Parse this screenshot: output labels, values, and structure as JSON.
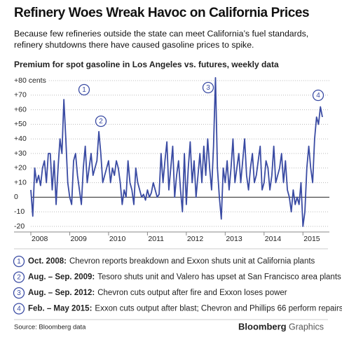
{
  "header": {
    "title": "Refinery Woes Wreak Havoc on California Prices",
    "subtitle": "Because few refineries outside the state can meet California’s fuel standards, refinery shutdowns there have caused gasoline prices to spike."
  },
  "chart_data": {
    "type": "line",
    "title": "Premium for spot gasoline in Los Angeles vs. futures, weekly data",
    "color": "#3a4ba3",
    "x": [
      2008,
      2008.05,
      2008.1,
      2008.15,
      2008.2,
      2008.25,
      2008.3,
      2008.35,
      2008.4,
      2008.45,
      2008.5,
      2008.55,
      2008.6,
      2008.65,
      2008.7,
      2008.75,
      2008.8,
      2008.85,
      2008.9,
      2008.95,
      2009,
      2009.05,
      2009.1,
      2009.15,
      2009.2,
      2009.25,
      2009.3,
      2009.35,
      2009.4,
      2009.45,
      2009.5,
      2009.55,
      2009.6,
      2009.65,
      2009.7,
      2009.75,
      2009.8,
      2009.85,
      2009.9,
      2009.95,
      2010,
      2010.05,
      2010.1,
      2010.15,
      2010.2,
      2010.25,
      2010.3,
      2010.35,
      2010.4,
      2010.45,
      2010.5,
      2010.55,
      2010.6,
      2010.65,
      2010.7,
      2010.75,
      2010.8,
      2010.85,
      2010.9,
      2010.95,
      2011,
      2011.05,
      2011.1,
      2011.15,
      2011.2,
      2011.25,
      2011.3,
      2011.35,
      2011.4,
      2011.45,
      2011.5,
      2011.55,
      2011.6,
      2011.65,
      2011.7,
      2011.75,
      2011.8,
      2011.85,
      2011.9,
      2011.95,
      2012,
      2012.05,
      2012.1,
      2012.15,
      2012.2,
      2012.25,
      2012.3,
      2012.35,
      2012.4,
      2012.45,
      2012.5,
      2012.55,
      2012.6,
      2012.65,
      2012.7,
      2012.75,
      2012.8,
      2012.85,
      2012.9,
      2012.95,
      2013,
      2013.05,
      2013.1,
      2013.15,
      2013.2,
      2013.25,
      2013.3,
      2013.35,
      2013.4,
      2013.45,
      2013.5,
      2013.55,
      2013.6,
      2013.65,
      2013.7,
      2013.75,
      2013.8,
      2013.85,
      2013.9,
      2013.95,
      2014,
      2014.05,
      2014.1,
      2014.15,
      2014.2,
      2014.25,
      2014.3,
      2014.35,
      2014.4,
      2014.45,
      2014.5,
      2014.55,
      2014.6,
      2014.65,
      2014.7,
      2014.75,
      2014.8,
      2014.85,
      2014.9,
      2014.95,
      2015,
      2015.05,
      2015.1,
      2015.15,
      2015.2,
      2015.25,
      2015.3,
      2015.35,
      2015.4,
      2015.45,
      2015.5
    ],
    "values": [
      5,
      -13,
      20,
      10,
      15,
      8,
      20,
      25,
      10,
      30,
      30,
      5,
      25,
      -5,
      20,
      40,
      30,
      67,
      40,
      10,
      0,
      -5,
      25,
      30,
      15,
      5,
      -5,
      20,
      35,
      10,
      20,
      30,
      15,
      20,
      25,
      45,
      30,
      10,
      15,
      20,
      25,
      10,
      20,
      15,
      25,
      20,
      10,
      -5,
      5,
      0,
      25,
      10,
      5,
      -5,
      20,
      10,
      5,
      0,
      2,
      -2,
      5,
      0,
      3,
      10,
      5,
      0,
      2,
      30,
      10,
      25,
      38,
      5,
      20,
      35,
      0,
      15,
      25,
      5,
      -10,
      30,
      -5,
      20,
      38,
      10,
      25,
      0,
      15,
      30,
      10,
      35,
      15,
      40,
      20,
      5,
      35,
      82,
      20,
      0,
      -15,
      20,
      10,
      25,
      5,
      20,
      40,
      10,
      20,
      30,
      10,
      25,
      40,
      15,
      5,
      20,
      30,
      10,
      15,
      25,
      35,
      5,
      10,
      25,
      20,
      5,
      15,
      35,
      10,
      15,
      20,
      30,
      10,
      25,
      5,
      0,
      -10,
      5,
      -5,
      0,
      -5,
      10,
      -20,
      -10,
      20,
      35,
      20,
      10,
      40,
      55,
      50,
      62,
      55
    ],
    "xlim": [
      2008,
      2015.5
    ],
    "xticks": [
      2008,
      2009,
      2010,
      2011,
      2012,
      2013,
      2014,
      2015
    ],
    "ylim": [
      -20,
      80
    ],
    "yticks": [
      {
        "value": 80,
        "label": "+80 cents"
      },
      {
        "value": 70,
        "label": "+70"
      },
      {
        "value": 60,
        "label": "+60"
      },
      {
        "value": 50,
        "label": "+50"
      },
      {
        "value": 40,
        "label": "+40"
      },
      {
        "value": 30,
        "label": "+30"
      },
      {
        "value": 20,
        "label": "+20"
      },
      {
        "value": 10,
        "label": "+10"
      },
      0,
      -10,
      -20
    ],
    "grid": true
  },
  "notes": [
    {
      "number": "1",
      "date": "Oct. 2008:",
      "text": "Chevron reports breakdown and Exxon shuts unit at California plants"
    },
    {
      "number": "2",
      "date": "Aug. – Sep. 2009:",
      "text": "Tesoro shuts unit and Valero has upset at San Francisco area plants"
    },
    {
      "number": "3",
      "date": "Aug. – Sep. 2012:",
      "text": "Chevron cuts output after fire and Exxon loses power"
    },
    {
      "number": "4",
      "date": "Feb. – May 2015:",
      "text": "Exxon cuts output after blast; Chevron and Phillips 66 perform repairs"
    }
  ],
  "footer": {
    "source": "Source: Bloomberg data",
    "brand": "Bloomberg",
    "brand_suffix": "Graphics"
  }
}
